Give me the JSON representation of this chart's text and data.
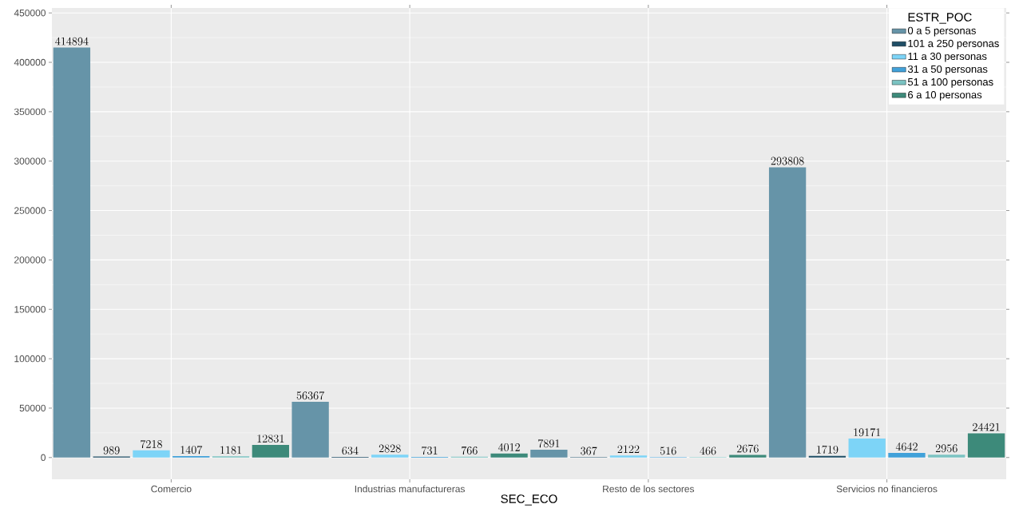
{
  "chart_data": {
    "type": "bar",
    "xlabel": "SEC_ECO",
    "legend_title": "ESTR_POC",
    "categories": [
      "Comercio",
      "Industrias manufactureras",
      "Resto de los sectores",
      "Servicios no financieros"
    ],
    "series": [
      {
        "name": "0 a 5 personas",
        "color": "#6694a8",
        "values": [
          414894,
          56367,
          7891,
          293808
        ]
      },
      {
        "name": "101 a 250 personas",
        "color": "#1f4e66",
        "values": [
          989,
          634,
          367,
          1719
        ]
      },
      {
        "name": "11 a 30 personas",
        "color": "#7dd4f7",
        "values": [
          7218,
          2828,
          2122,
          19171
        ]
      },
      {
        "name": "31 a 50 personas",
        "color": "#41a1d9",
        "values": [
          1407,
          731,
          516,
          4642
        ]
      },
      {
        "name": "51 a 100 personas",
        "color": "#7bc3c2",
        "values": [
          1181,
          766,
          466,
          2956
        ]
      },
      {
        "name": "6 a 10 personas",
        "color": "#3d8a7a",
        "values": [
          12831,
          4012,
          2676,
          24421
        ]
      }
    ],
    "ylim": [
      -22000,
      455000
    ],
    "yticks": [
      0,
      50000,
      100000,
      150000,
      200000,
      250000,
      300000,
      350000,
      400000,
      450000
    ],
    "grid": true,
    "legend": "top right",
    "data_labels": true
  }
}
